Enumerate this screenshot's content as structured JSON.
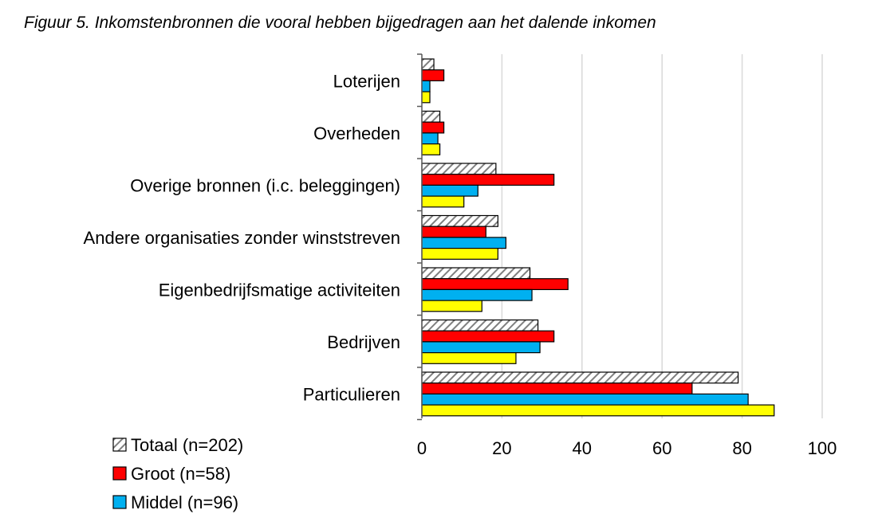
{
  "chart_data": {
    "type": "bar",
    "orientation": "horizontal",
    "title": "Figuur 5. Inkomstenbronnen die vooral hebben bijgedragen aan het dalende inkomen",
    "categories": [
      "Loterijen",
      "Overheden",
      "Overige bronnen (i.c. beleggingen)",
      "Andere organisaties zonder winststreven",
      "Eigenbedrijfsmatige activiteiten",
      "Bedrijven",
      "Particulieren"
    ],
    "series": [
      {
        "name": "Totaal (n=202)",
        "color": "#d9d9d9",
        "pattern": "hatch",
        "values": [
          3,
          4.5,
          18.5,
          19,
          27,
          29,
          79
        ]
      },
      {
        "name": "Groot (n=58)",
        "color": "#ff0000",
        "pattern": "solid",
        "values": [
          5.5,
          5.5,
          33,
          16,
          36.5,
          33,
          67.5
        ]
      },
      {
        "name": "Middel (n=96)",
        "color": "#00b0f0",
        "pattern": "solid",
        "values": [
          2,
          4,
          14,
          21,
          27.5,
          29.5,
          81.5
        ]
      },
      {
        "name": "",
        "color": "#ffff00",
        "pattern": "solid",
        "values": [
          2,
          4.5,
          10.5,
          19,
          15,
          23.5,
          88
        ]
      }
    ],
    "xlim": [
      0,
      100
    ],
    "xticks": [
      0,
      20,
      40,
      60,
      80,
      100
    ],
    "xtick_labels": [
      "0",
      "20",
      "40",
      "60",
      "80",
      "100"
    ],
    "grid": "vertical",
    "legend_position": "bottom-left"
  }
}
